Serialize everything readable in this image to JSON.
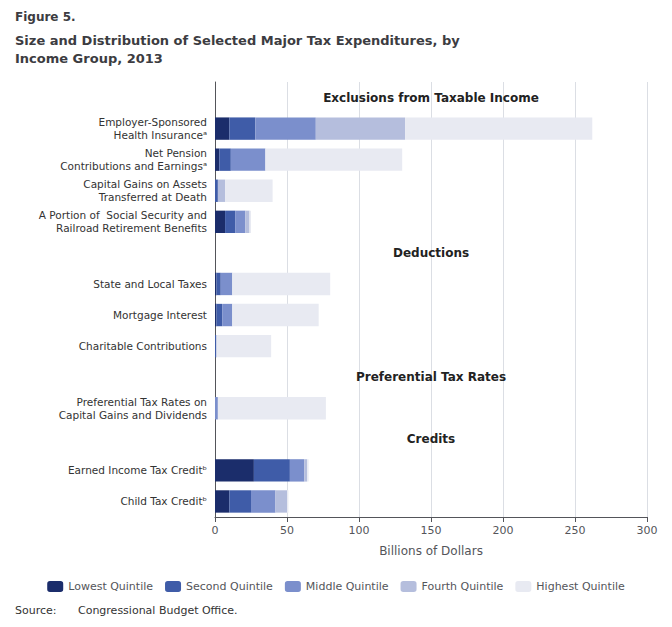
{
  "chart_data": {
    "type": "bar",
    "orientation": "horizontal",
    "stacked": true,
    "figure_label": "Figure 5.",
    "title": "Size and Distribution of Selected Major Tax Expenditures, by\nIncome Group, 2013",
    "source": "Source:    Congressional Budget Office.",
    "xlabel": "Billions of Dollars",
    "categories": [
      "Employer-Sponsored\nHealth Insuranceᵃ",
      "Net Pension\nContributions and Earningsᵃ",
      "Capital Gains on Assets\nTransferred at Death",
      "A Portion of  Social Security and\nRailroad Retirement Benefits",
      "State and Local Taxes",
      "Mortgage Interest",
      "Charitable Contributions",
      "Preferential Tax Rates on\nCapital Gains and Dividends",
      "Earned Income Tax Creditᵇ",
      "Child Tax Creditᵇ"
    ],
    "series": [
      {
        "name": "Lowest Quintile",
        "color": "#1b2d6b",
        "values": [
          10,
          3,
          0,
          7,
          1,
          1,
          0,
          0,
          27,
          10
        ]
      },
      {
        "name": "Second Quintile",
        "color": "#3f5ca8",
        "values": [
          18,
          8,
          2,
          7,
          3,
          4,
          1,
          0,
          25,
          15
        ]
      },
      {
        "name": "Middle Quintile",
        "color": "#7b8fcc",
        "values": [
          42,
          24,
          0,
          7,
          8,
          7,
          0,
          2,
          10,
          17
        ]
      },
      {
        "name": "Fourth Quintile",
        "color": "#b5bedd",
        "values": [
          62,
          0,
          5,
          3,
          0,
          0,
          0,
          0,
          2,
          8
        ]
      },
      {
        "name": "Highest Quintile",
        "color": "#e8eaf2",
        "values": [
          130,
          95,
          33,
          1,
          68,
          60,
          38,
          75,
          1,
          1
        ]
      }
    ],
    "annotations": [
      {
        "text": "Exclusions from Taxable Income",
        "category": "Employer-Sponsored\nHealth Insuranceᵃ"
      },
      {
        "text": "Deductions",
        "category": "State and Local Taxes"
      },
      {
        "text": "Preferential Tax Rates",
        "category": "Preferential Tax Rates on\nCapital Gains and Dividends"
      },
      {
        "text": "Credits",
        "category": "Earned Income Tax Creditᵇ"
      }
    ],
    "xlim": [
      0,
      300
    ],
    "xticks": [
      0,
      50,
      100,
      150,
      200,
      250,
      300
    ],
    "grid": true,
    "legend": "bottom"
  }
}
